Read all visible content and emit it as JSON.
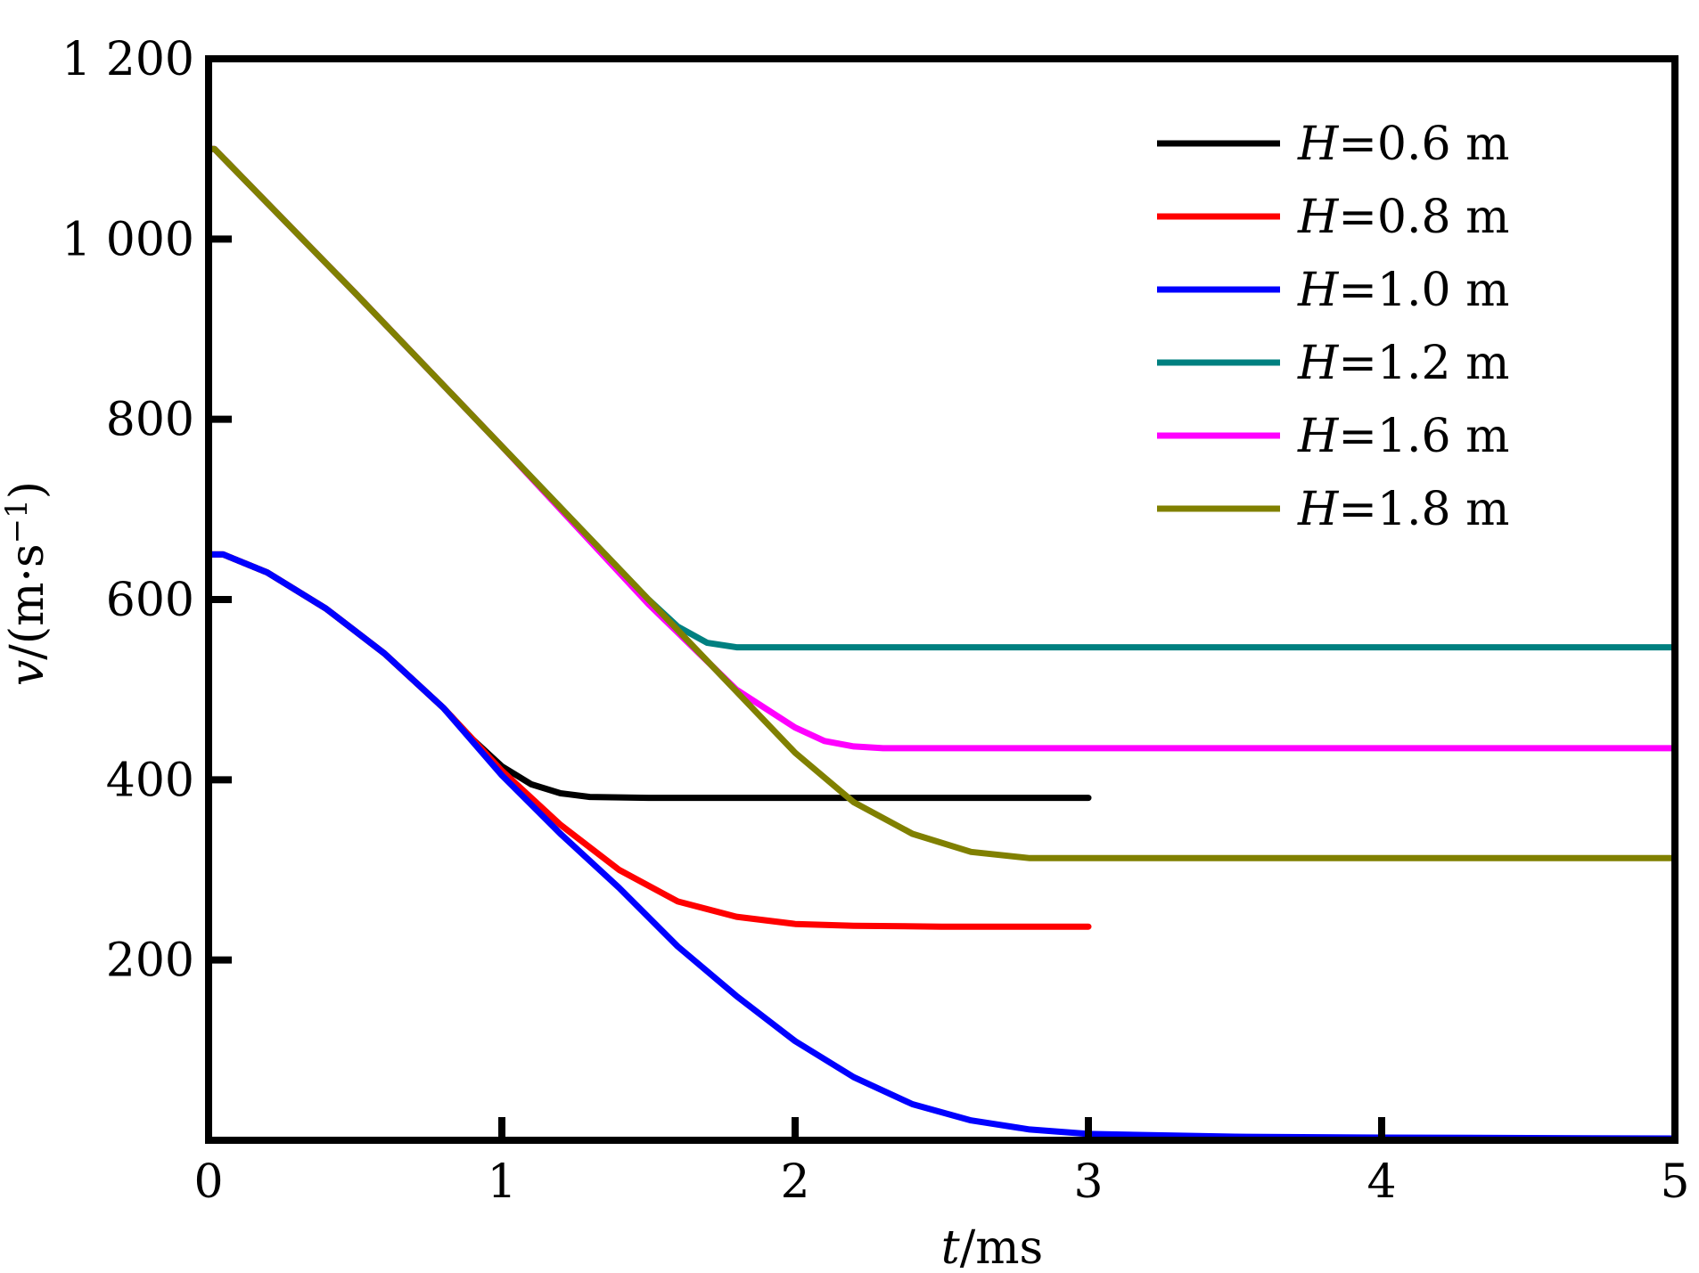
{
  "chart_data": {
    "type": "line",
    "xlabel": {
      "var": "t",
      "unit": "/ms"
    },
    "ylabel": {
      "var": "v",
      "unit_prefix": "/(m·s",
      "unit_exp": "−1",
      "unit_suffix": ")"
    },
    "xlim": [
      0,
      5
    ],
    "ylim": [
      0,
      1200
    ],
    "x_ticks": [
      {
        "value": 0,
        "label": "0"
      },
      {
        "value": 1,
        "label": "1"
      },
      {
        "value": 2,
        "label": "2"
      },
      {
        "value": 3,
        "label": "3"
      },
      {
        "value": 4,
        "label": "4"
      },
      {
        "value": 5,
        "label": "5"
      }
    ],
    "y_ticks": [
      {
        "value": 200,
        "label": "200"
      },
      {
        "value": 400,
        "label": "400"
      },
      {
        "value": 600,
        "label": "600"
      },
      {
        "value": 800,
        "label": "800"
      },
      {
        "value": 1000,
        "label": "1 000"
      },
      {
        "value": 1200,
        "label": "1 200"
      }
    ],
    "grid": false,
    "legend_position": "top-right",
    "series": [
      {
        "name": "H=0.6 m",
        "var": "H",
        "value_text": "=0.6 m",
        "color": "#000000",
        "points": [
          [
            0,
            650
          ],
          [
            0.05,
            650
          ],
          [
            0.2,
            630
          ],
          [
            0.4,
            590
          ],
          [
            0.6,
            540
          ],
          [
            0.8,
            480
          ],
          [
            0.9,
            445
          ],
          [
            1.0,
            415
          ],
          [
            1.1,
            395
          ],
          [
            1.2,
            385
          ],
          [
            1.3,
            381
          ],
          [
            1.5,
            380
          ],
          [
            2.0,
            380
          ],
          [
            3.0,
            380
          ]
        ]
      },
      {
        "name": "H=0.8 m",
        "var": "H",
        "value_text": "=0.8 m",
        "color": "#ff0000",
        "points": [
          [
            0,
            650
          ],
          [
            0.05,
            650
          ],
          [
            0.2,
            630
          ],
          [
            0.4,
            590
          ],
          [
            0.6,
            540
          ],
          [
            0.8,
            480
          ],
          [
            1.0,
            410
          ],
          [
            1.2,
            350
          ],
          [
            1.4,
            300
          ],
          [
            1.6,
            265
          ],
          [
            1.8,
            248
          ],
          [
            2.0,
            240
          ],
          [
            2.2,
            238
          ],
          [
            2.5,
            237
          ],
          [
            3.0,
            237
          ]
        ]
      },
      {
        "name": "H=1.0 m",
        "var": "H",
        "value_text": "=1.0 m",
        "color": "#0000ff",
        "points": [
          [
            0,
            650
          ],
          [
            0.05,
            650
          ],
          [
            0.2,
            630
          ],
          [
            0.4,
            590
          ],
          [
            0.6,
            540
          ],
          [
            0.8,
            480
          ],
          [
            1.0,
            405
          ],
          [
            1.2,
            340
          ],
          [
            1.4,
            280
          ],
          [
            1.6,
            215
          ],
          [
            1.8,
            160
          ],
          [
            2.0,
            110
          ],
          [
            2.2,
            70
          ],
          [
            2.4,
            40
          ],
          [
            2.6,
            22
          ],
          [
            2.8,
            12
          ],
          [
            3.0,
            7
          ],
          [
            3.5,
            4
          ],
          [
            4.0,
            3
          ],
          [
            5.0,
            2
          ]
        ]
      },
      {
        "name": "H=1.2 m",
        "var": "H",
        "value_text": "=1.2 m",
        "color": "#008080",
        "points": [
          [
            0,
            1100
          ],
          [
            0.02,
            1100
          ],
          [
            0.5,
            940
          ],
          [
            1.0,
            770
          ],
          [
            1.5,
            600
          ],
          [
            1.6,
            570
          ],
          [
            1.7,
            552
          ],
          [
            1.8,
            547
          ],
          [
            2.0,
            547
          ],
          [
            3.0,
            547
          ],
          [
            4.0,
            547
          ],
          [
            5.0,
            547
          ]
        ]
      },
      {
        "name": "H=1.6 m",
        "var": "H",
        "value_text": "=1.6 m",
        "color": "#ff00ff",
        "points": [
          [
            0,
            1100
          ],
          [
            0.02,
            1100
          ],
          [
            0.5,
            940
          ],
          [
            1.0,
            770
          ],
          [
            1.5,
            595
          ],
          [
            1.8,
            500
          ],
          [
            2.0,
            458
          ],
          [
            2.1,
            443
          ],
          [
            2.2,
            437
          ],
          [
            2.3,
            435
          ],
          [
            3.0,
            435
          ],
          [
            4.0,
            435
          ],
          [
            5.0,
            435
          ]
        ]
      },
      {
        "name": "H=1.8 m",
        "var": "H",
        "value_text": "=1.8 m",
        "color": "#808000",
        "points": [
          [
            0,
            1100
          ],
          [
            0.02,
            1100
          ],
          [
            0.5,
            940
          ],
          [
            1.0,
            770
          ],
          [
            1.5,
            600
          ],
          [
            2.0,
            430
          ],
          [
            2.2,
            375
          ],
          [
            2.4,
            340
          ],
          [
            2.6,
            320
          ],
          [
            2.8,
            313
          ],
          [
            3.0,
            313
          ],
          [
            4.0,
            313
          ],
          [
            5.0,
            313
          ]
        ]
      }
    ]
  }
}
